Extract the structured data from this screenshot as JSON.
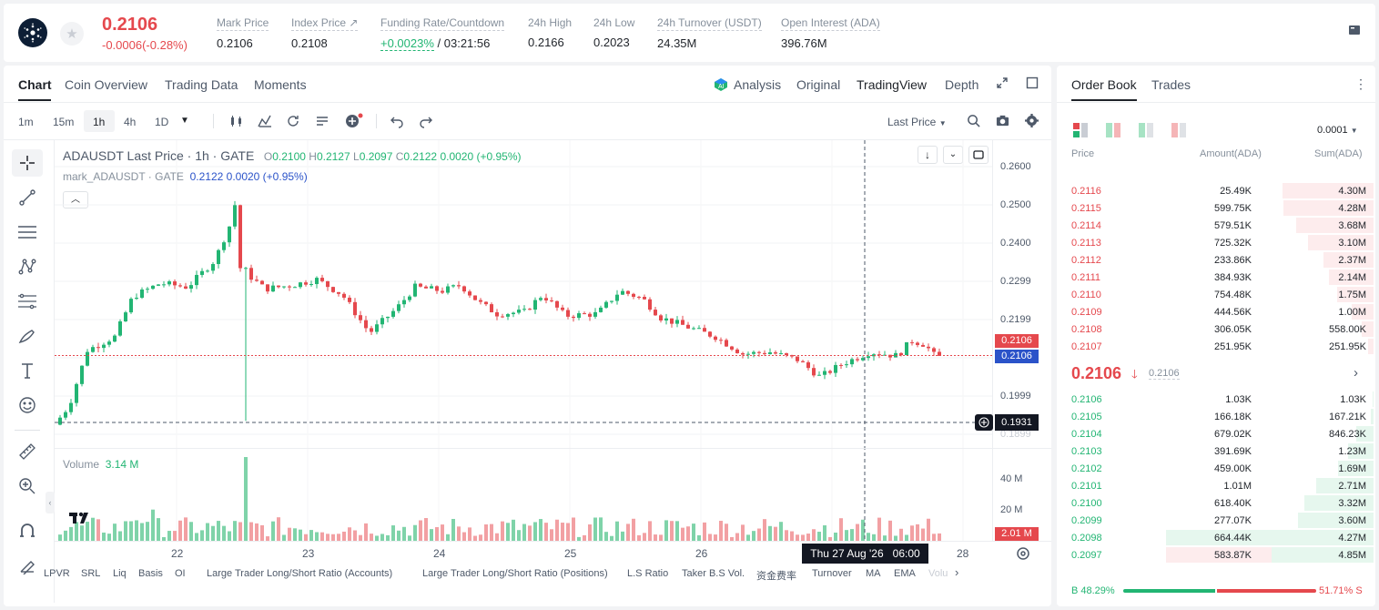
{
  "ticker": {
    "price": "0.2106",
    "change": "-0.0006(-0.28%)"
  },
  "stats": [
    {
      "label": "Mark Price",
      "value": "0.2106"
    },
    {
      "label": "Index Price ↗",
      "value": "0.2108"
    },
    {
      "label": "Funding Rate/Countdown",
      "value_a": "+0.0023%",
      "value_b": " / 03:21:56"
    },
    {
      "label": "24h High",
      "value": "0.2166"
    },
    {
      "label": "24h Low",
      "value": "0.2023"
    },
    {
      "label": "24h Turnover (USDT)",
      "value": "24.35M"
    },
    {
      "label": "Open Interest (ADA)",
      "value": "396.76M"
    }
  ],
  "chart_tabs": [
    "Chart",
    "Coin Overview",
    "Trading Data",
    "Moments"
  ],
  "view_tabs": [
    "Analysis",
    "Original",
    "TradingView",
    "Depth"
  ],
  "timeframes": [
    "1m",
    "15m",
    "1h",
    "4h",
    "1D"
  ],
  "price_type": "Last Price",
  "legend": {
    "title": "ADAUSDT Last Price · 1h · GATE",
    "o": "0.2100",
    "h": "0.2127",
    "l": "0.2097",
    "c": "0.2122",
    "delta": "0.0020 (+0.95%)",
    "mark_name": "mark_ADAUSDT · GATE",
    "mark_val": "0.2122",
    "mark_delta": "0.0020 (+0.95%)",
    "volume_label": "Volume",
    "volume_val": "3.14 M"
  },
  "y_ticks": [
    "0.2600",
    "0.2500",
    "0.2400",
    "0.2299",
    "0.2199",
    "0.1999",
    "0.1899"
  ],
  "price_tags": {
    "last": "0.2106",
    "mark": "0.2106",
    "cross": "0.1931"
  },
  "vol_ticks": [
    "40 M",
    "20 M"
  ],
  "vol_tag": "2.01 M",
  "x_ticks": [
    "22",
    "23",
    "24",
    "25",
    "26",
    "28"
  ],
  "crosshair_time": "Thu 27 Aug '26   06:00",
  "indicators": [
    "LPVR",
    "SRL",
    "Liq",
    "Basis",
    "OI",
    "Large Trader Long/Short Ratio (Accounts)",
    "Large Trader Long/Short Ratio (Positions)",
    "L.S Ratio",
    "Taker B.S Vol.",
    "资金费率",
    "Turnover",
    "MA",
    "EMA",
    "Volu"
  ],
  "orderbook": {
    "tabs": [
      "Order Book",
      "Trades"
    ],
    "precision": "0.0001",
    "headers": [
      "Price",
      "Amount(ADA)",
      "Sum(ADA)"
    ],
    "asks": [
      {
        "price": "0.2116",
        "amount": "25.49K",
        "sum": "4.30M",
        "depth": 0.89
      },
      {
        "price": "0.2115",
        "amount": "599.75K",
        "sum": "4.28M",
        "depth": 0.88
      },
      {
        "price": "0.2114",
        "amount": "579.51K",
        "sum": "3.68M",
        "depth": 0.76
      },
      {
        "price": "0.2113",
        "amount": "725.32K",
        "sum": "3.10M",
        "depth": 0.64
      },
      {
        "price": "0.2112",
        "amount": "233.86K",
        "sum": "2.37M",
        "depth": 0.49
      },
      {
        "price": "0.2111",
        "amount": "384.93K",
        "sum": "2.14M",
        "depth": 0.44
      },
      {
        "price": "0.2110",
        "amount": "754.48K",
        "sum": "1.75M",
        "depth": 0.36
      },
      {
        "price": "0.2109",
        "amount": "444.56K",
        "sum": "1.00M",
        "depth": 0.21
      },
      {
        "price": "0.2108",
        "amount": "306.05K",
        "sum": "558.00K",
        "depth": 0.12
      },
      {
        "price": "0.2107",
        "amount": "251.95K",
        "sum": "251.95K",
        "depth": 0.05
      }
    ],
    "mid_price": "0.2106",
    "mid_mark": "0.2106",
    "bids": [
      {
        "price": "0.2106",
        "amount": "1.03K",
        "sum": "1.03K",
        "depth": 0.01
      },
      {
        "price": "0.2105",
        "amount": "166.18K",
        "sum": "167.21K",
        "depth": 0.03
      },
      {
        "price": "0.2104",
        "amount": "679.02K",
        "sum": "846.23K",
        "depth": 0.17
      },
      {
        "price": "0.2103",
        "amount": "391.69K",
        "sum": "1.23M",
        "depth": 0.25
      },
      {
        "price": "0.2102",
        "amount": "459.00K",
        "sum": "1.69M",
        "depth": 0.35
      },
      {
        "price": "0.2101",
        "amount": "1.01M",
        "sum": "2.71M",
        "depth": 0.56
      },
      {
        "price": "0.2100",
        "amount": "618.40K",
        "sum": "3.32M",
        "depth": 0.68
      },
      {
        "price": "0.2099",
        "amount": "277.07K",
        "sum": "3.60M",
        "depth": 0.74
      },
      {
        "price": "0.2098",
        "amount": "664.44K",
        "sum": "4.27M",
        "depth": 0.88
      },
      {
        "price": "0.2097",
        "amount": "583.87K",
        "sum": "4.85M",
        "depth": 1.0
      }
    ],
    "buy_label": "B 48.29%",
    "sell_label": "51.71% S",
    "buy_ratio": 0.4829
  },
  "colors": {
    "up": "#22b573",
    "down": "#e5484d",
    "mark": "#2b53c9"
  }
}
